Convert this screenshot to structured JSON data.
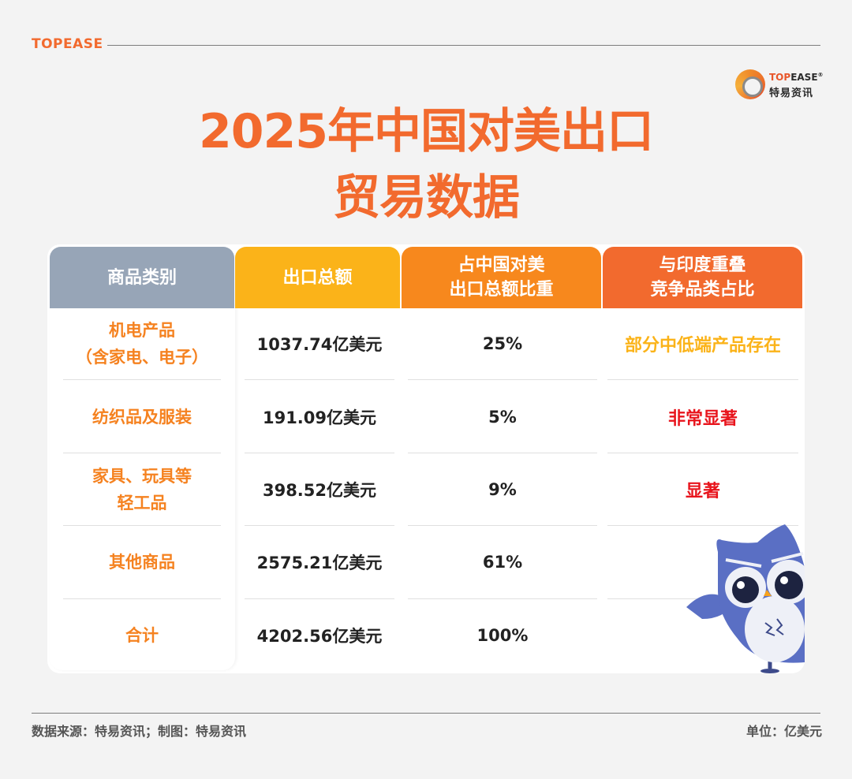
{
  "brand": {
    "top_label": "TOPEASE",
    "logo_en_prefix": "TOP",
    "logo_en_suffix": "EASE",
    "logo_registered": "®",
    "logo_cn": "特易资讯"
  },
  "title": {
    "line1": "2025年中国对美出口",
    "line2": "贸易数据"
  },
  "table": {
    "headers": [
      "商品类别",
      "出口总额",
      "占中国对美\n出口总额比重",
      "与印度重叠\n竞争品类占比"
    ],
    "rows": [
      {
        "category": "机电产品\n（含家电、电子）",
        "amount": "1037.74亿美元",
        "share": "25%",
        "overlap": "部分中低端产品存在",
        "overlap_color": "#fbb319"
      },
      {
        "category": "纺织品及服装",
        "amount": "191.09亿美元",
        "share": "5%",
        "overlap": "非常显著",
        "overlap_color": "#e8141c"
      },
      {
        "category": "家具、玩具等\n轻工品",
        "amount": "398.52亿美元",
        "share": "9%",
        "overlap": "显著",
        "overlap_color": "#e8141c"
      },
      {
        "category": "其他商品",
        "amount": "2575.21亿美元",
        "share": "61%",
        "overlap": "",
        "overlap_color": "#e8141c"
      },
      {
        "category": "合计",
        "amount": "4202.56亿美元",
        "share": "100%",
        "overlap": "",
        "overlap_color": "#e8141c"
      }
    ]
  },
  "colors": {
    "accent": "#f26a2e",
    "header_gray": "#97a5b7",
    "header_yellow": "#fbb319",
    "header_orange": "#f7881d",
    "header_red_orange": "#f26a2e",
    "owl_blue": "#5a6fc4"
  },
  "footer": {
    "source": "数据来源：特易资讯；制图：特易资讯",
    "unit": "单位：亿美元"
  },
  "mascot": {
    "icon": "owl-mascot-icon"
  }
}
